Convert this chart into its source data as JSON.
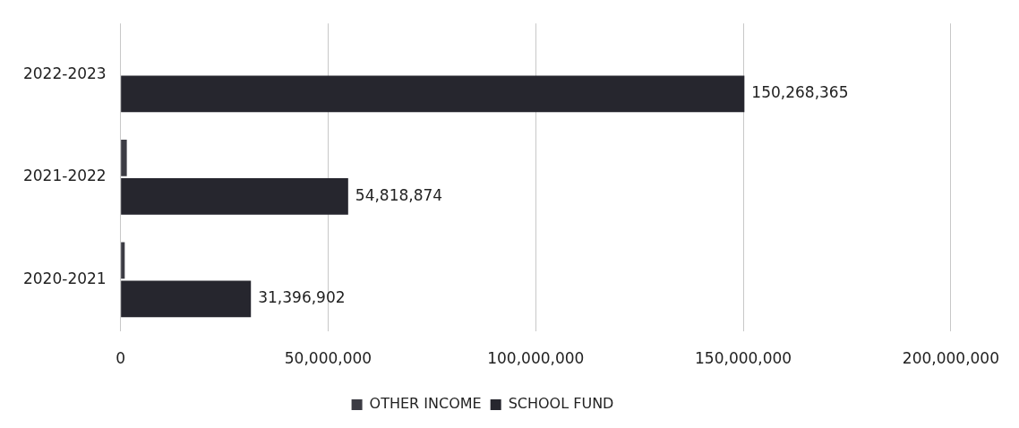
{
  "chart_data": {
    "type": "bar",
    "orientation": "horizontal",
    "categories": [
      "2022-2023",
      "2021-2022",
      "2020-2021"
    ],
    "series": [
      {
        "name": "OTHER INCOME",
        "color": "#3c3c44",
        "values": [
          null,
          1500000,
          1000000
        ]
      },
      {
        "name": "SCHOOL FUND",
        "color": "#26262e",
        "values": [
          150268365,
          54818874,
          31396902
        ],
        "value_labels": [
          "150,268,365",
          "54,818,874",
          "31,396,902"
        ]
      }
    ],
    "xlim": [
      0,
      200000000
    ],
    "xticks": [
      0,
      {
        "value": 50000000,
        "label": "50,000,000"
      },
      {
        "value": 100000000,
        "label": "100,000,000"
      },
      {
        "value": 150000000,
        "label": "150,000,000"
      },
      {
        "value": 200000000,
        "label": "200,000,000"
      }
    ],
    "grid": "x",
    "legend": "bottom"
  }
}
